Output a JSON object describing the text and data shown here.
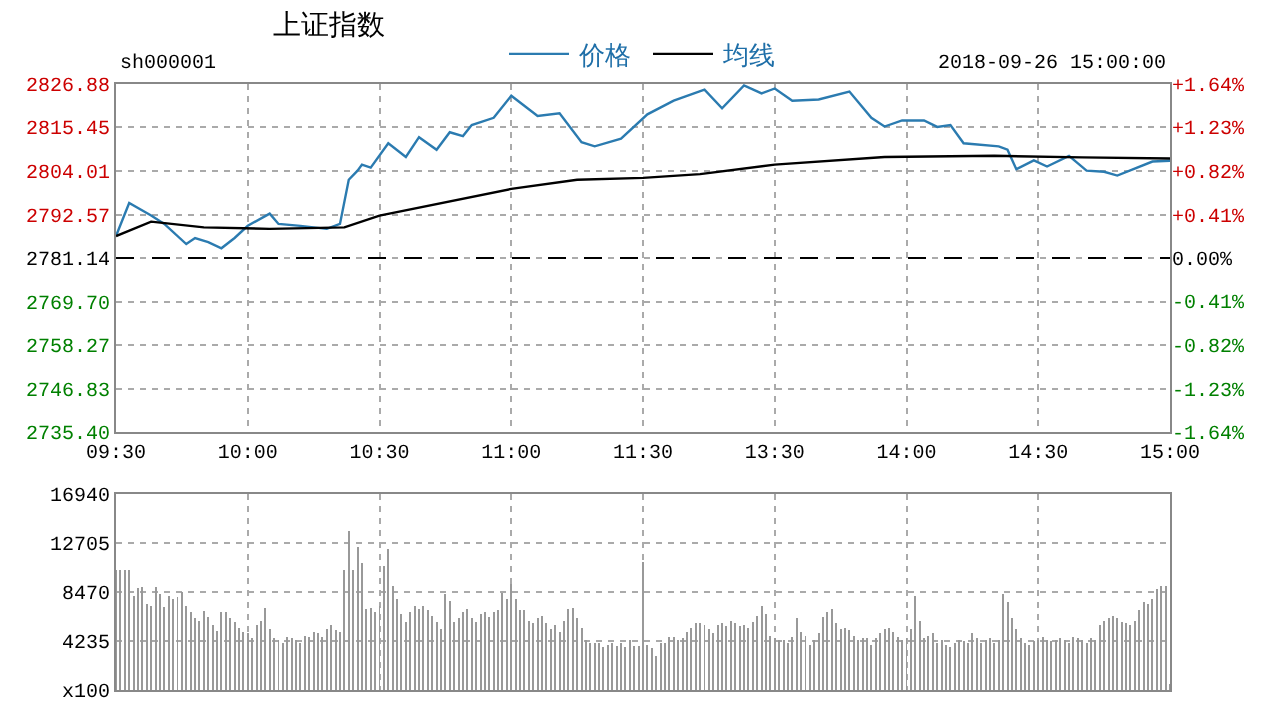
{
  "chart_data": [
    {
      "type": "line",
      "title": "上证指数",
      "annotations": [
        "sh000001",
        "2018-09-26 15:00:00"
      ],
      "categories": [
        "09:30",
        null,
        null,
        null,
        null,
        null,
        null,
        null,
        null,
        null,
        null,
        null,
        null,
        null,
        null,
        null,
        null,
        null,
        null,
        null,
        null,
        null,
        null,
        null,
        null,
        null,
        null,
        null,
        null,
        null,
        "10:00",
        null,
        null,
        null,
        null,
        null,
        null,
        null,
        null,
        null,
        null,
        null,
        null,
        null,
        null,
        null,
        null,
        null,
        null,
        null,
        null,
        null,
        null,
        null,
        null,
        null,
        null,
        null,
        null,
        null,
        "10:30",
        null,
        null,
        null,
        null,
        null,
        null,
        null,
        null,
        null,
        null,
        null,
        null,
        null,
        null,
        null,
        null,
        null,
        null,
        null,
        null,
        null,
        null,
        null,
        null,
        null,
        null,
        null,
        null,
        null,
        "11:00",
        null,
        null,
        null,
        null,
        null,
        null,
        null,
        null,
        null,
        null,
        null,
        null,
        null,
        null,
        null,
        null,
        null,
        null,
        null,
        null,
        null,
        null,
        null,
        null,
        null,
        null,
        null,
        null,
        null,
        "11:30",
        null,
        null,
        null,
        null,
        null,
        null,
        null,
        null,
        null,
        null,
        null,
        null,
        null,
        null,
        null,
        null,
        null,
        null,
        null,
        null,
        null,
        null,
        null,
        null,
        null,
        null,
        null,
        null,
        null,
        "13:30",
        null,
        null,
        null,
        null,
        null,
        null,
        null,
        null,
        null,
        null,
        null,
        null,
        null,
        null,
        null,
        null,
        null,
        null,
        null,
        null,
        null,
        null,
        null,
        null,
        null,
        null,
        null,
        null,
        null,
        "14:00",
        null,
        null,
        null,
        null,
        null,
        null,
        null,
        null,
        null,
        null,
        null,
        null,
        null,
        null,
        null,
        null,
        null,
        null,
        null,
        null,
        null,
        null,
        null,
        null,
        null,
        null,
        null,
        null,
        null,
        "14:30",
        null,
        null,
        null,
        null,
        null,
        null,
        null,
        null,
        null,
        null,
        null,
        null,
        null,
        null,
        null,
        null,
        null,
        null,
        null,
        null,
        null,
        null,
        null,
        null,
        null,
        null,
        null,
        null,
        null,
        "15:00"
      ],
      "ylim": [
        2735.4,
        2826.88
      ],
      "yticks": [
        {
          "value": 2735.4,
          "label": "2735.40"
        },
        2746.83,
        2758.27,
        {
          "value": 2769.7,
          "label": "2769.70"
        },
        2781.14,
        2792.57,
        2804.01,
        2815.45,
        2826.88
      ],
      "y2lim": [
        -1.645,
        1.645
      ],
      "y2ticks": [
        {
          "value": -1.645,
          "label": "-1.64%"
        },
        {
          "value": -1.234,
          "label": "-1.23%"
        },
        {
          "value": -0.822,
          "label": "-0.82%"
        },
        {
          "value": -0.411,
          "label": "-0.41%"
        },
        {
          "value": 0,
          "label": "0.00%"
        },
        {
          "value": 0.411,
          "label": "+0.41%"
        },
        {
          "value": 0.822,
          "label": "+0.82%"
        },
        {
          "value": 1.234,
          "label": "+1.23%"
        },
        {
          "value": 1.645,
          "label": "+1.64%"
        }
      ],
      "ref_lines": [
        {
          "axis": "y",
          "value": 2781.14,
          "color": "#000000",
          "line_style": "dashed"
        }
      ],
      "grid": true,
      "legend": "top",
      "marker": "none",
      "line_style": "solid",
      "series": [
        {
          "name": "价格",
          "color": "#2b7bb0",
          "values": [
            2786.9,
            null,
            null,
            2795.6,
            null,
            null,
            null,
            null,
            2792.3,
            null,
            null,
            2790.1,
            null,
            null,
            null,
            null,
            2784.8,
            null,
            2786.4,
            null,
            null,
            2785.3,
            null,
            null,
            2783.7,
            null,
            null,
            2786.4,
            null,
            null,
            2789.6,
            null,
            null,
            null,
            null,
            2792.8,
            null,
            2790.1,
            null,
            null,
            null,
            null,
            2789.6,
            null,
            null,
            null,
            null,
            null,
            2788.8,
            null,
            null,
            2790.1,
            null,
            2801.7,
            null,
            2804.1,
            2805.7,
            null,
            2804.9,
            null,
            null,
            null,
            2811.3,
            null,
            null,
            null,
            2807.7,
            null,
            null,
            2812.9,
            null,
            null,
            null,
            2809.6,
            null,
            null,
            2814.2,
            null,
            null,
            2813.2,
            null,
            2816.1,
            null,
            null,
            null,
            null,
            2818.0,
            null,
            null,
            null,
            2823.8,
            null,
            null,
            null,
            null,
            null,
            2818.5,
            null,
            null,
            null,
            null,
            2819.2,
            null,
            null,
            null,
            null,
            2811.6,
            null,
            null,
            2810.5,
            null,
            null,
            null,
            null,
            null,
            2812.5,
            null,
            null,
            null,
            null,
            null,
            2818.9,
            null,
            null,
            null,
            null,
            null,
            2822.5,
            null,
            null,
            null,
            null,
            null,
            null,
            2825.4,
            null,
            null,
            null,
            2820.5,
            null,
            null,
            null,
            null,
            2826.5,
            null,
            null,
            null,
            2824.4,
            null,
            null,
            2825.7,
            null,
            null,
            null,
            2822.5,
            null,
            null,
            null,
            null,
            null,
            2822.8,
            null,
            null,
            null,
            null,
            null,
            null,
            2824.9,
            null,
            null,
            null,
            null,
            2818.0,
            null,
            null,
            2815.7,
            null,
            null,
            null,
            2817.3,
            null,
            null,
            null,
            null,
            2817.3,
            null,
            null,
            2815.6,
            null,
            null,
            2816.1,
            null,
            null,
            2811.3,
            null,
            null,
            null,
            null,
            null,
            null,
            null,
            2810.5,
            null,
            2809.6,
            null,
            2804.5,
            null,
            null,
            null,
            2806.8,
            null,
            null,
            2805.2,
            null,
            null,
            null,
            null,
            2808.0,
            null,
            null,
            null,
            2804.1,
            null,
            null,
            null,
            2803.8,
            null,
            null,
            2802.8,
            null,
            null,
            null,
            null,
            null,
            null,
            null,
            2806.5,
            null,
            null,
            null,
            2806.7
          ]
        },
        {
          "name": "均线",
          "color": "#000000",
          "values": [
            2786.9,
            null,
            null,
            null,
            null,
            null,
            null,
            null,
            2790.7,
            null,
            null,
            null,
            null,
            null,
            null,
            null,
            null,
            null,
            null,
            null,
            2789.2,
            null,
            null,
            null,
            null,
            null,
            null,
            null,
            null,
            null,
            null,
            null,
            null,
            null,
            null,
            2788.8,
            null,
            null,
            null,
            null,
            null,
            null,
            null,
            null,
            null,
            null,
            null,
            null,
            null,
            null,
            null,
            null,
            2789.2,
            null,
            null,
            null,
            null,
            null,
            null,
            null,
            2792.3,
            null,
            null,
            null,
            null,
            null,
            null,
            null,
            null,
            null,
            null,
            null,
            null,
            null,
            null,
            null,
            null,
            null,
            null,
            null,
            null,
            null,
            null,
            null,
            null,
            null,
            null,
            null,
            null,
            null,
            2799.3,
            null,
            null,
            null,
            null,
            null,
            null,
            null,
            null,
            null,
            null,
            null,
            null,
            null,
            null,
            2801.7,
            null,
            null,
            null,
            null,
            null,
            null,
            null,
            null,
            null,
            null,
            null,
            null,
            null,
            null,
            2802.2,
            null,
            null,
            null,
            null,
            null,
            null,
            null,
            null,
            null,
            null,
            null,
            null,
            2803.2,
            null,
            null,
            null,
            null,
            null,
            null,
            null,
            null,
            null,
            null,
            null,
            null,
            null,
            null,
            null,
            null,
            2805.7,
            null,
            null,
            null,
            null,
            null,
            null,
            null,
            null,
            null,
            null,
            null,
            null,
            null,
            null,
            null,
            null,
            null,
            null,
            null,
            null,
            null,
            null,
            null,
            null,
            2807.7,
            null,
            null,
            null,
            null,
            null,
            null,
            null,
            null,
            null,
            null,
            null,
            null,
            null,
            null,
            null,
            null,
            null,
            null,
            null,
            null,
            null,
            null,
            null,
            null,
            2808.0,
            null,
            null,
            null,
            null,
            null,
            null,
            null,
            null,
            null,
            null,
            null,
            null,
            null,
            null,
            null,
            null,
            null,
            null,
            null,
            2807.6,
            null,
            null,
            null,
            null,
            null,
            null,
            null,
            null,
            null,
            null,
            null,
            null,
            null,
            null,
            null,
            null,
            null,
            null,
            null,
            2807.3
          ]
        }
      ]
    },
    {
      "type": "bar",
      "tick_labels": "y",
      "grid": true,
      "categories": [
        null,
        null,
        null,
        null,
        null,
        null,
        null,
        null,
        null,
        null,
        null,
        null,
        null,
        null,
        null,
        null,
        null,
        null,
        null,
        null,
        null,
        null,
        null,
        null,
        null,
        null,
        null,
        null,
        null,
        null,
        null,
        null,
        null,
        null,
        null,
        null,
        null,
        null,
        null,
        null,
        null,
        null,
        null,
        null,
        null,
        null,
        null,
        null,
        null,
        null,
        null,
        null,
        null,
        null,
        null,
        null,
        null,
        null,
        null,
        null,
        null,
        null,
        null,
        null,
        null,
        null,
        null,
        null,
        null,
        null,
        null,
        null,
        null,
        null,
        null,
        null,
        null,
        null,
        null,
        null,
        null,
        null,
        null,
        null,
        null,
        null,
        null,
        null,
        null,
        null,
        null,
        null,
        null,
        null,
        null,
        null,
        null,
        null,
        null,
        null,
        null,
        null,
        null,
        null,
        null,
        null,
        null,
        null,
        null,
        null,
        null,
        null,
        null,
        null,
        null,
        null,
        null,
        null,
        null,
        null,
        null,
        null,
        null,
        null,
        null,
        null,
        null,
        null,
        null,
        null,
        null,
        null,
        null,
        null,
        null,
        null,
        null,
        null,
        null,
        null,
        null,
        null,
        null,
        null,
        null,
        null,
        null,
        null,
        null,
        null,
        null,
        null,
        null,
        null,
        null,
        null,
        null,
        null,
        null,
        null,
        null,
        null,
        null,
        null,
        null,
        null,
        null,
        null,
        null,
        null,
        null,
        null,
        null,
        null,
        null,
        null,
        null,
        null,
        null,
        null,
        null,
        null,
        null,
        null,
        null,
        null,
        null,
        null,
        null,
        null,
        null,
        null,
        null,
        null,
        null,
        null,
        null,
        null,
        null,
        null,
        null,
        null,
        null,
        null,
        null,
        null,
        null,
        null,
        null,
        null,
        null,
        null,
        null,
        null,
        null,
        null,
        null,
        null,
        null,
        null,
        null,
        null,
        null,
        null,
        null,
        null,
        null,
        null,
        null,
        null,
        null,
        null,
        null,
        null,
        null,
        null,
        null,
        null,
        null,
        null,
        null
      ],
      "ylim": [
        0,
        16940
      ],
      "yticks": [
        {
          "value": 0,
          "label": "x100"
        },
        4235,
        8470,
        12705,
        16940
      ],
      "series": [
        {
          "color": "#999999",
          "values": [
            10400,
            10400,
            10400,
            10400,
            8100,
            8800,
            8900,
            7400,
            7300,
            8900,
            8300,
            7200,
            8100,
            7900,
            8000,
            8500,
            7300,
            6700,
            6200,
            6000,
            6800,
            6300,
            5600,
            5100,
            6700,
            6700,
            6200,
            5900,
            5400,
            5000,
            4900,
            4500,
            5600,
            6000,
            7100,
            5300,
            4500,
            4300,
            4100,
            4600,
            4500,
            4300,
            4100,
            4700,
            4600,
            5000,
            4900,
            4600,
            5300,
            5600,
            5200,
            5000,
            10400,
            13700,
            10400,
            12400,
            11000,
            7000,
            7100,
            6700,
            7300,
            10700,
            12200,
            9000,
            7900,
            6600,
            5900,
            6700,
            7300,
            7000,
            7300,
            6900,
            6400,
            5900,
            5300,
            8300,
            7700,
            5900,
            6200,
            6700,
            7000,
            6200,
            5900,
            6600,
            6700,
            6300,
            6700,
            6900,
            8400,
            7900,
            9200,
            7900,
            6900,
            6900,
            6000,
            5800,
            6200,
            6400,
            5800,
            5300,
            5600,
            5000,
            6000,
            7000,
            7100,
            6200,
            5400,
            4300,
            4100,
            4100,
            4100,
            3700,
            3900,
            4100,
            3800,
            4100,
            3700,
            4300,
            3800,
            3800,
            11100,
            3900,
            3600,
            2900,
            4100,
            4100,
            4600,
            4600,
            4300,
            4500,
            5000,
            5400,
            5800,
            5800,
            5600,
            5300,
            4900,
            5600,
            5800,
            5500,
            6000,
            5800,
            5500,
            5600,
            5400,
            5900,
            6400,
            7300,
            6600,
            4700,
            4500,
            4300,
            4300,
            4100,
            4600,
            6200,
            5000,
            4700,
            3900,
            4300,
            4900,
            6300,
            6700,
            7000,
            5800,
            5300,
            5400,
            5200,
            4700,
            4300,
            4500,
            4500,
            3900,
            4500,
            4900,
            5300,
            5400,
            5000,
            4600,
            4300,
            4500,
            5300,
            8100,
            6000,
            4500,
            4700,
            4900,
            4100,
            4300,
            3900,
            3700,
            4100,
            4300,
            4200,
            4100,
            4900,
            4500,
            4100,
            4300,
            4500,
            4100,
            4300,
            8300,
            7600,
            6200,
            5300,
            4500,
            4100,
            3900,
            4200,
            4300,
            4600,
            4300,
            4200,
            4300,
            4500,
            4300,
            4100,
            4600,
            4500,
            4300,
            4100,
            4500,
            4300,
            5600,
            6000,
            6200,
            6400,
            6200,
            5900,
            5800,
            5600,
            6000,
            6900,
            7600,
            7400,
            7900,
            8700,
            9000,
            9000,
            500
          ]
        }
      ]
    }
  ]
}
